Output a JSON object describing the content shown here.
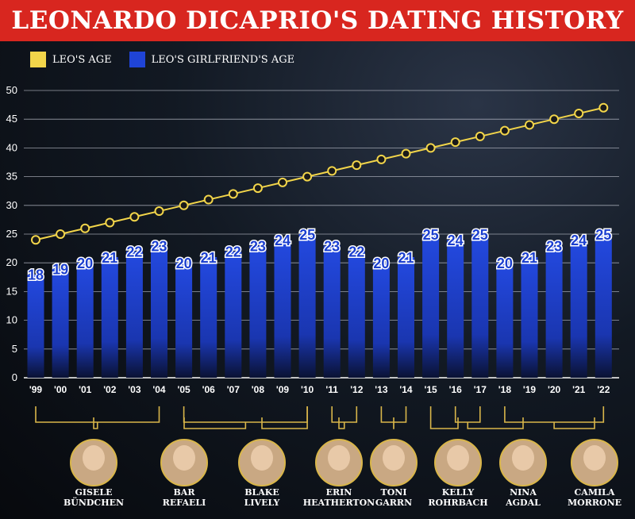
{
  "title": "LEONARDO DICAPRIO'S DATING HISTORY",
  "legend": [
    {
      "label": "LEO'S AGE",
      "color": "#f2d54a"
    },
    {
      "label": "LEO'S GIRLFRIEND'S AGE",
      "color": "#1f44d6"
    }
  ],
  "chart_data": {
    "type": "bar",
    "categories": [
      "'99",
      "'00",
      "'01",
      "'02",
      "'03",
      "'04",
      "'05",
      "'06",
      "'07",
      "'08",
      "'09",
      "'10",
      "'11",
      "'12",
      "'13",
      "'14",
      "'15",
      "'16",
      "'17",
      "'18",
      "'19",
      "'20",
      "'21",
      "'22"
    ],
    "series": [
      {
        "name": "LEO'S AGE",
        "type": "line",
        "color": "#f2d54a",
        "values": [
          24,
          25,
          26,
          27,
          28,
          29,
          30,
          31,
          32,
          33,
          34,
          35,
          36,
          37,
          38,
          39,
          40,
          41,
          42,
          43,
          44,
          45,
          46,
          47
        ]
      },
      {
        "name": "LEO'S GIRLFRIEND'S AGE",
        "type": "bar",
        "color": "#1f44d6",
        "values": [
          18,
          19,
          20,
          21,
          22,
          23,
          20,
          21,
          22,
          23,
          24,
          25,
          23,
          22,
          20,
          21,
          25,
          24,
          25,
          20,
          21,
          23,
          24,
          25
        ]
      }
    ],
    "ylim": [
      0,
      50
    ],
    "yticks": [
      0,
      5,
      10,
      15,
      20,
      25,
      30,
      35,
      40,
      45,
      50
    ],
    "grid": true,
    "legend_position": "top-left"
  },
  "partners": [
    {
      "line1": "GISELE",
      "line2": "BÜNDCHEN",
      "years": [
        0,
        5
      ]
    },
    {
      "line1": "BAR",
      "line2": "REFAELI",
      "years": [
        6,
        11
      ]
    },
    {
      "line1": "BLAKE",
      "line2": "LIVELY",
      "years": [
        11,
        11
      ]
    },
    {
      "line1": "ERIN",
      "line2": "HEATHERTON",
      "years": [
        12,
        13
      ]
    },
    {
      "line1": "TONI",
      "line2": "GARRN",
      "years": [
        14,
        15
      ]
    },
    {
      "line1": "KELLY",
      "line2": "ROHRBACH",
      "years": [
        16,
        16
      ]
    },
    {
      "line1": "NINA",
      "line2": "AGDAL",
      "years": [
        17,
        18
      ]
    },
    {
      "line1": "CAMILA",
      "line2": "MORRONE",
      "years": [
        19,
        23
      ]
    }
  ]
}
